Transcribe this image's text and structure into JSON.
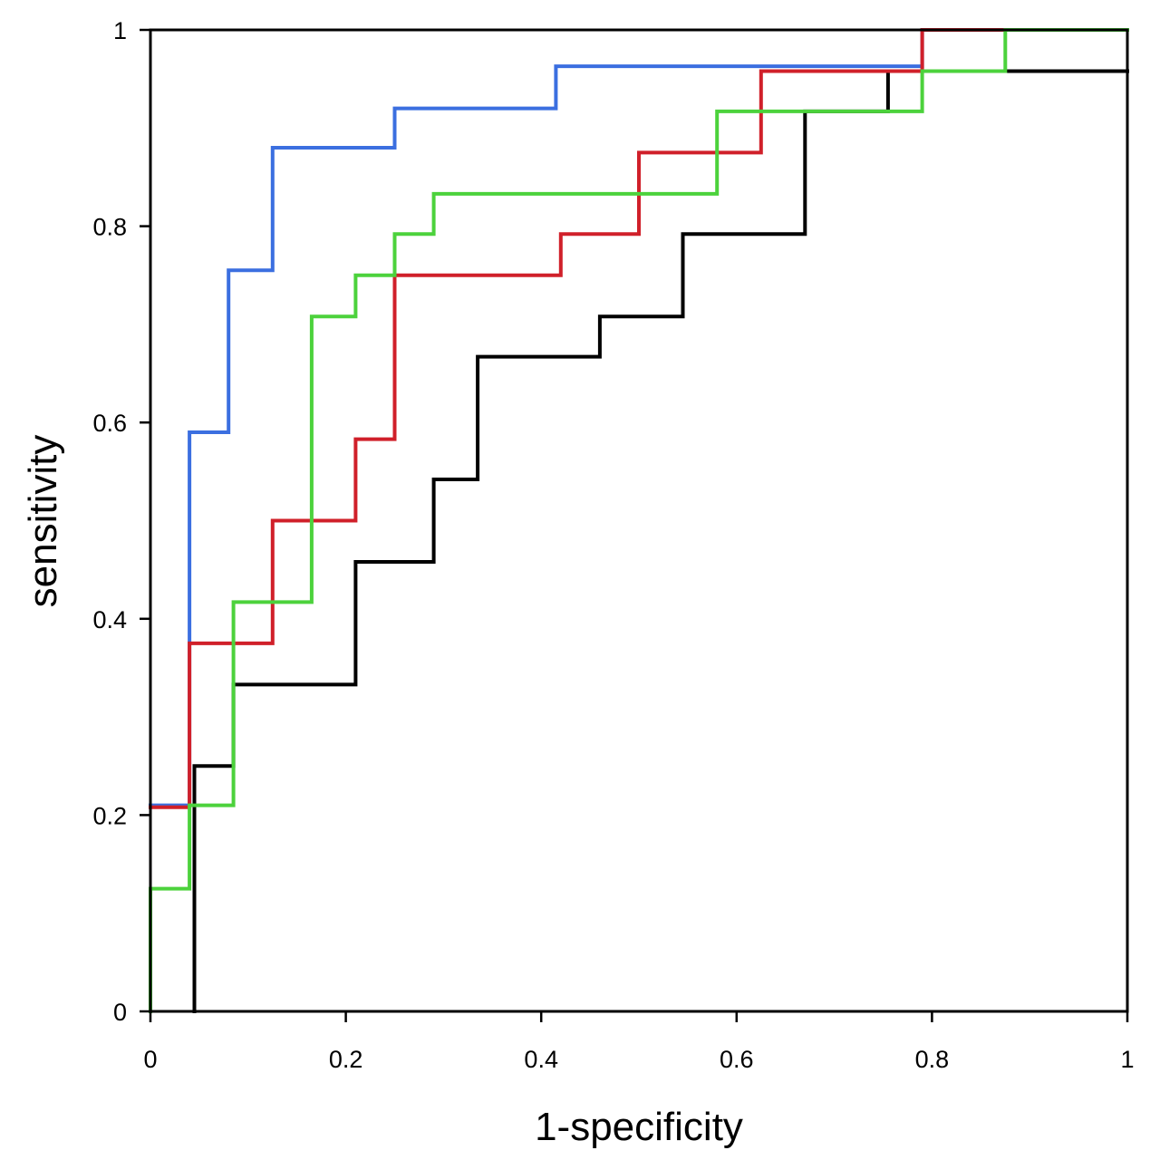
{
  "chart_data": {
    "type": "line",
    "title": "",
    "xlabel": "1-specificity",
    "ylabel": "sensitivity",
    "xlim": [
      0,
      1
    ],
    "ylim": [
      0,
      1
    ],
    "x_ticks": [
      "0",
      "0.2",
      "0.4",
      "0.6",
      "0.8",
      "1"
    ],
    "y_ticks": [
      "0",
      "0.2",
      "0.4",
      "0.6",
      "0.8",
      "1"
    ],
    "grid": false,
    "legend": "none",
    "step": true,
    "series": [
      {
        "color": "#000000",
        "points": [
          [
            0.045,
            0
          ],
          [
            0.045,
            0.25
          ],
          [
            0.085,
            0.25
          ],
          [
            0.085,
            0.333
          ],
          [
            0.21,
            0.333
          ],
          [
            0.21,
            0.458
          ],
          [
            0.29,
            0.458
          ],
          [
            0.29,
            0.542
          ],
          [
            0.335,
            0.542
          ],
          [
            0.335,
            0.667
          ],
          [
            0.46,
            0.667
          ],
          [
            0.46,
            0.708
          ],
          [
            0.545,
            0.708
          ],
          [
            0.545,
            0.792
          ],
          [
            0.67,
            0.792
          ],
          [
            0.67,
            0.917
          ],
          [
            0.755,
            0.917
          ],
          [
            0.755,
            0.958
          ],
          [
            1.0,
            0.958
          ]
        ]
      },
      {
        "color": "#3b6fe0",
        "points": [
          [
            0,
            0.21
          ],
          [
            0.04,
            0.21
          ],
          [
            0.04,
            0.59
          ],
          [
            0.08,
            0.59
          ],
          [
            0.08,
            0.755
          ],
          [
            0.125,
            0.755
          ],
          [
            0.125,
            0.88
          ],
          [
            0.25,
            0.88
          ],
          [
            0.25,
            0.92
          ],
          [
            0.415,
            0.92
          ],
          [
            0.415,
            0.963
          ],
          [
            0.79,
            0.963
          ],
          [
            0.79,
            1.0
          ],
          [
            1.0,
            1.0
          ]
        ]
      },
      {
        "color": "#d0202a",
        "points": [
          [
            0,
            0.208
          ],
          [
            0.04,
            0.208
          ],
          [
            0.04,
            0.375
          ],
          [
            0.125,
            0.375
          ],
          [
            0.125,
            0.5
          ],
          [
            0.21,
            0.5
          ],
          [
            0.21,
            0.583
          ],
          [
            0.25,
            0.583
          ],
          [
            0.25,
            0.75
          ],
          [
            0.42,
            0.75
          ],
          [
            0.42,
            0.792
          ],
          [
            0.5,
            0.792
          ],
          [
            0.5,
            0.875
          ],
          [
            0.625,
            0.875
          ],
          [
            0.625,
            0.958
          ],
          [
            0.79,
            0.958
          ],
          [
            0.79,
            1.0
          ],
          [
            1.0,
            1.0
          ]
        ]
      },
      {
        "color": "#4cd23c",
        "points": [
          [
            0,
            0
          ],
          [
            0,
            0.125
          ],
          [
            0.04,
            0.125
          ],
          [
            0.04,
            0.21
          ],
          [
            0.085,
            0.21
          ],
          [
            0.085,
            0.417
          ],
          [
            0.165,
            0.417
          ],
          [
            0.165,
            0.708
          ],
          [
            0.21,
            0.708
          ],
          [
            0.21,
            0.75
          ],
          [
            0.25,
            0.75
          ],
          [
            0.25,
            0.792
          ],
          [
            0.29,
            0.792
          ],
          [
            0.29,
            0.833
          ],
          [
            0.58,
            0.833
          ],
          [
            0.58,
            0.917
          ],
          [
            0.79,
            0.917
          ],
          [
            0.79,
            0.958
          ],
          [
            0.875,
            0.958
          ],
          [
            0.875,
            1.0
          ],
          [
            1.0,
            1.0
          ]
        ]
      }
    ]
  }
}
